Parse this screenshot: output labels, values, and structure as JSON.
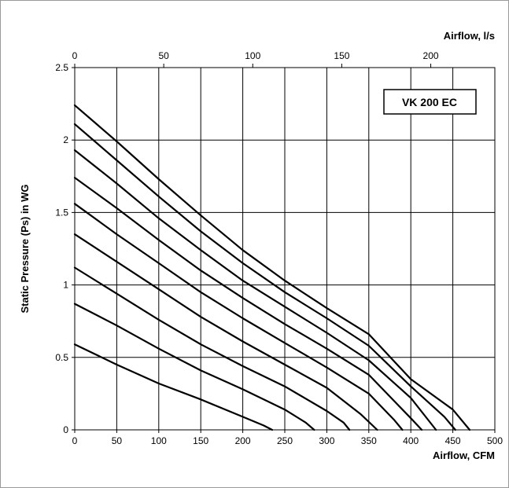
{
  "chart_data": {
    "type": "line",
    "title": "",
    "model_label": "VK 200 EC",
    "xlabel": "Airflow, CFM",
    "x2label": "Airflow, l/s",
    "ylabel": "Static Pressure (Ps) in WG",
    "xlim": [
      0,
      500
    ],
    "ylim": [
      0,
      2.5
    ],
    "x2lim": [
      0,
      236
    ],
    "x_ticks": [
      0,
      50,
      100,
      150,
      200,
      250,
      300,
      350,
      400,
      450,
      500
    ],
    "x_tick_labels": [
      "0",
      "50",
      "100",
      "150",
      "200",
      "250",
      "300",
      "350",
      "400",
      "450",
      "500"
    ],
    "x2_ticks": [
      0,
      50,
      100,
      150,
      200
    ],
    "x2_tick_labels": [
      "0",
      "50",
      "100",
      "150",
      "200"
    ],
    "y_ticks": [
      0,
      0.5,
      1,
      1.5,
      2,
      2.5
    ],
    "y_tick_labels": [
      "0",
      "0.5",
      "1",
      "1.5",
      "2",
      "2.5"
    ],
    "grid": true,
    "line_color": "#000000",
    "series": [
      {
        "x": [
          0,
          50,
          100,
          150,
          200,
          225,
          235
        ],
        "y": [
          0.59,
          0.45,
          0.32,
          0.21,
          0.09,
          0.03,
          0.0
        ]
      },
      {
        "x": [
          0,
          50,
          100,
          150,
          200,
          250,
          275,
          285
        ],
        "y": [
          0.87,
          0.72,
          0.56,
          0.41,
          0.28,
          0.14,
          0.05,
          0.0
        ]
      },
      {
        "x": [
          0,
          50,
          100,
          150,
          200,
          250,
          300,
          320,
          327
        ],
        "y": [
          1.12,
          0.94,
          0.76,
          0.59,
          0.44,
          0.3,
          0.13,
          0.05,
          0.0
        ]
      },
      {
        "x": [
          0,
          50,
          100,
          150,
          200,
          250,
          300,
          340,
          360
        ],
        "y": [
          1.35,
          1.16,
          0.97,
          0.78,
          0.61,
          0.45,
          0.29,
          0.11,
          0.0
        ]
      },
      {
        "x": [
          0,
          50,
          100,
          150,
          200,
          250,
          300,
          350,
          380,
          390
        ],
        "y": [
          1.56,
          1.35,
          1.15,
          0.95,
          0.77,
          0.6,
          0.43,
          0.25,
          0.07,
          0.0
        ]
      },
      {
        "x": [
          0,
          50,
          100,
          150,
          200,
          250,
          300,
          350,
          400,
          413
        ],
        "y": [
          1.74,
          1.53,
          1.31,
          1.1,
          0.91,
          0.73,
          0.56,
          0.38,
          0.08,
          0.0
        ]
      },
      {
        "x": [
          0,
          50,
          100,
          150,
          200,
          250,
          300,
          350,
          400,
          430
        ],
        "y": [
          1.93,
          1.7,
          1.46,
          1.24,
          1.03,
          0.85,
          0.67,
          0.48,
          0.22,
          0.0
        ]
      },
      {
        "x": [
          0,
          50,
          100,
          150,
          200,
          250,
          300,
          350,
          400,
          440,
          453
        ],
        "y": [
          2.11,
          1.86,
          1.61,
          1.37,
          1.15,
          0.95,
          0.77,
          0.58,
          0.3,
          0.09,
          0.0
        ]
      },
      {
        "x": [
          0,
          50,
          100,
          150,
          200,
          250,
          300,
          350,
          400,
          450,
          470
        ],
        "y": [
          2.24,
          1.99,
          1.73,
          1.48,
          1.24,
          1.03,
          0.84,
          0.66,
          0.35,
          0.14,
          0.0
        ]
      }
    ]
  }
}
